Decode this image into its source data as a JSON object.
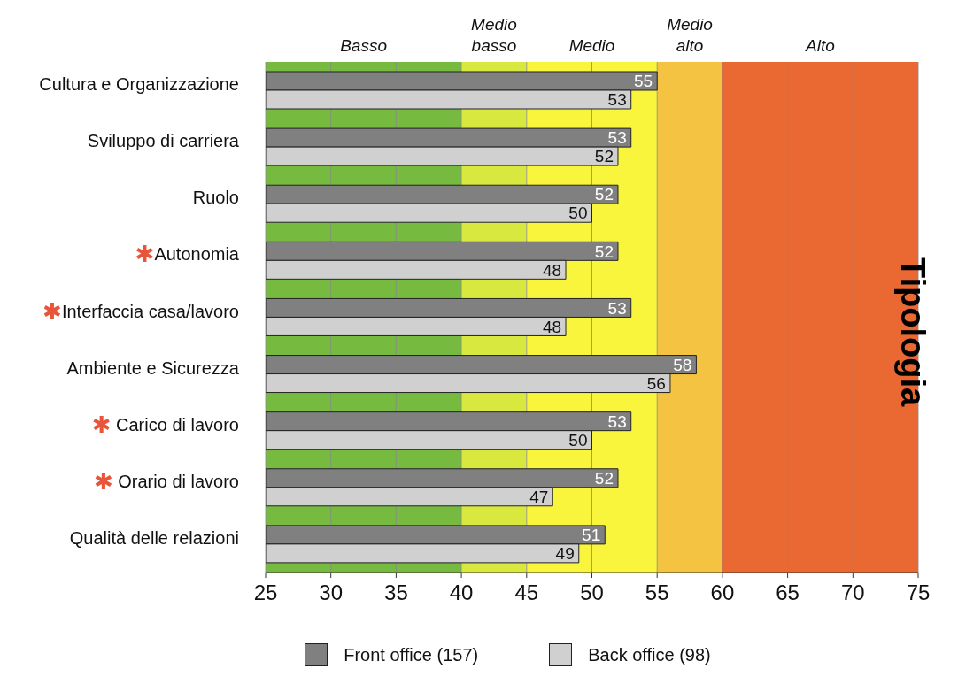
{
  "chart_data": {
    "type": "bar",
    "orientation": "horizontal",
    "categories": [
      "Cultura e Organizzazione",
      "Sviluppo di carriera",
      "Ruolo",
      "✱Autonomia",
      "✱Interfaccia casa/lavoro",
      "Ambiente e Sicurezza",
      "✱ Carico di lavoro",
      "✱ Orario di lavoro",
      "Qualità delle relazioni"
    ],
    "series": [
      {
        "name": "Front office (157)",
        "color": "#808080",
        "values": [
          55,
          53,
          52,
          52,
          53,
          58,
          53,
          52,
          51
        ]
      },
      {
        "name": "Back office (98)",
        "color": "#d0d0d0",
        "values": [
          53,
          52,
          50,
          48,
          48,
          56,
          50,
          47,
          49
        ]
      }
    ],
    "xlim": [
      25,
      75
    ],
    "xticks": [
      25,
      30,
      35,
      40,
      45,
      50,
      55,
      60,
      65,
      70,
      75
    ],
    "grid": "x",
    "legend": "bottom",
    "data_labels": true,
    "bands": [
      {
        "axis": "x",
        "from": 25,
        "to": 40,
        "label": "Basso",
        "color": "#76bb40"
      },
      {
        "axis": "x",
        "from": 40,
        "to": 45,
        "label": "Medio basso",
        "color": "#d9e83f"
      },
      {
        "axis": "x",
        "from": 45,
        "to": 55,
        "label": "Medio",
        "color": "#f8f53c"
      },
      {
        "axis": "x",
        "from": 55,
        "to": 60,
        "label": "Medio alto",
        "color": "#f5c342"
      },
      {
        "axis": "x",
        "from": 60,
        "to": 75,
        "label": "Alto",
        "color": "#ea6832"
      }
    ],
    "annotations": [
      "Tipologia"
    ]
  }
}
